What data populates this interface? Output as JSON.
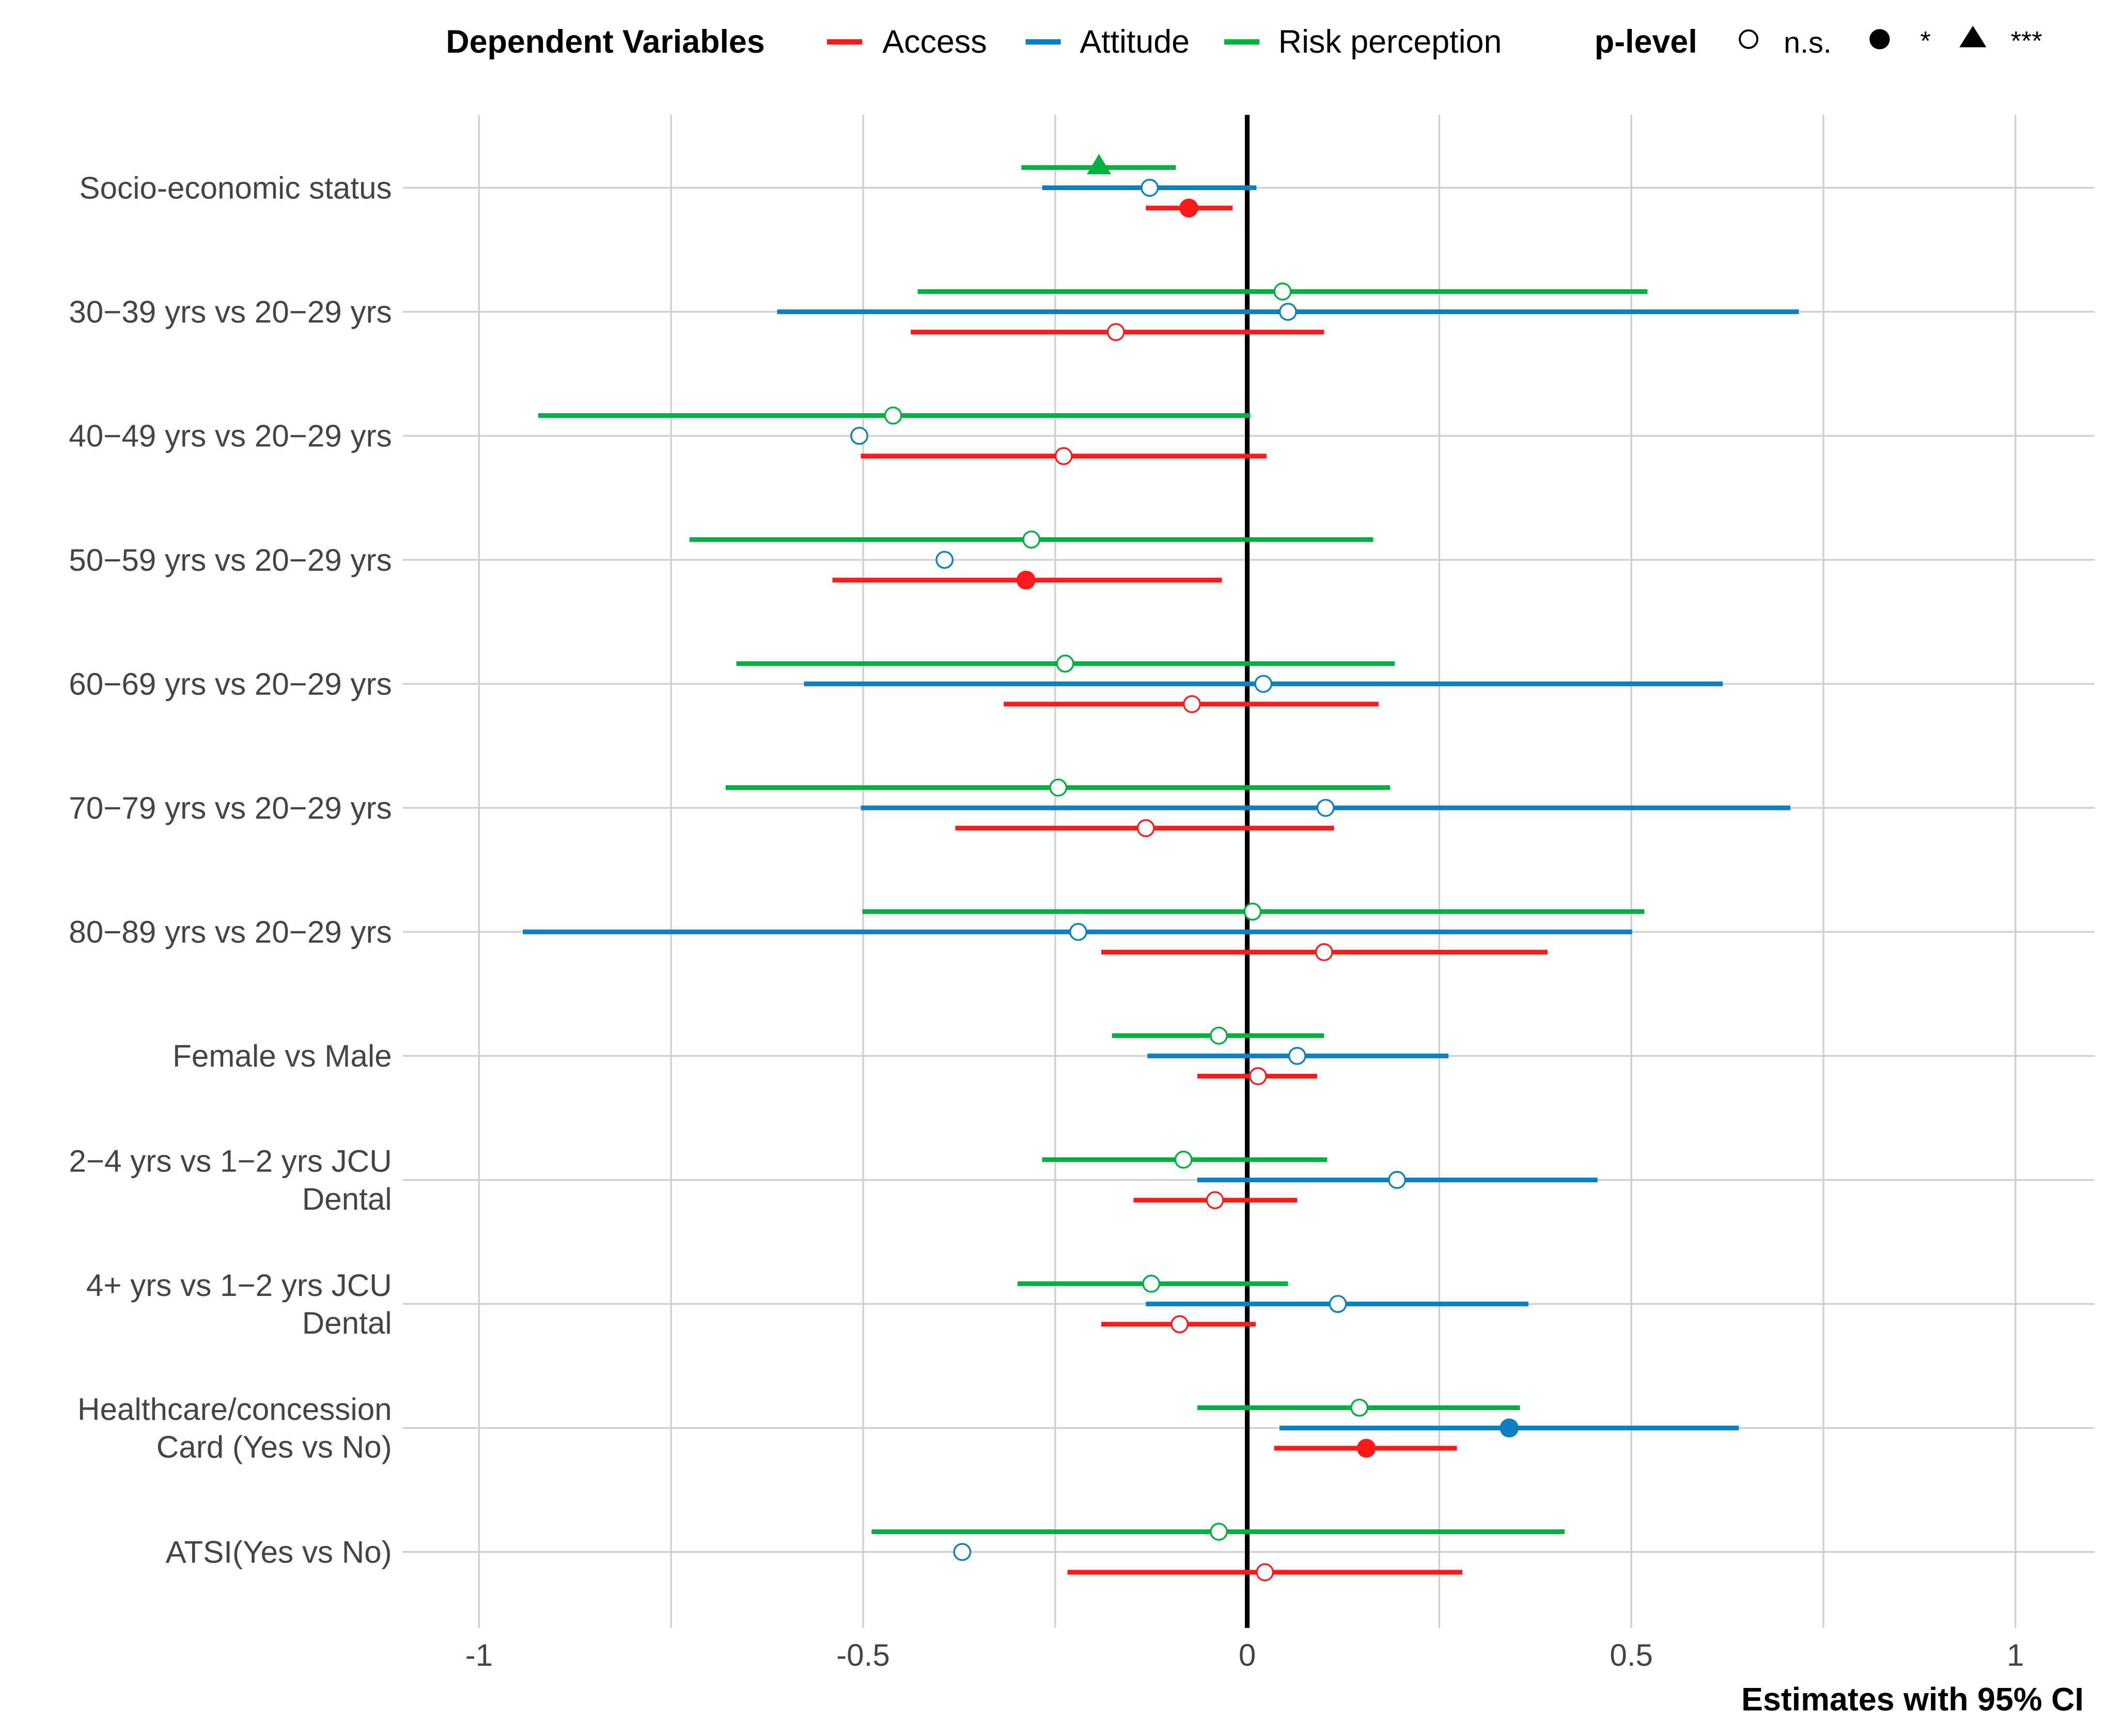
{
  "chart_data": {
    "type": "forest",
    "xlabel": "Estimates with 95% CI",
    "xlim": [
      -1.12,
      1.1
    ],
    "xticks": [
      -1,
      -0.5,
      0,
      0.5,
      1
    ],
    "xtick_labels": [
      "-1",
      "-0.5",
      "0",
      "0.5",
      "1"
    ],
    "grid": true,
    "legend_placement": "top",
    "legend": {
      "title": "Dependent Variables",
      "series": [
        "Access",
        "Attitude",
        "Risk perception"
      ],
      "p_title": "p-level",
      "p_levels": [
        "n.s.",
        "*",
        "***"
      ]
    },
    "colors": {
      "Access": "#ff1a1a",
      "Attitude": "#0a7fc1",
      "Risk perception": "#00b140"
    },
    "categories": [
      [
        "Socio-economic status"
      ],
      [
        "30−39 yrs vs 20−29 yrs"
      ],
      [
        "40−49 yrs vs 20−29 yrs"
      ],
      [
        "50−59 yrs vs 20−29 yrs"
      ],
      [
        "60−69 yrs vs 20−29 yrs"
      ],
      [
        "70−79 yrs vs 20−29 yrs"
      ],
      [
        "80−89 yrs vs 20−29 yrs"
      ],
      [
        "Female vs Male"
      ],
      [
        "2−4 yrs vs 1−2 yrs JCU",
        "Dental"
      ],
      [
        "4+ yrs vs 1−2 yrs JCU",
        "Dental"
      ],
      [
        "Healthcare/concession",
        "Card (Yes vs No)"
      ],
      [
        "ATSI(Yes vs No)"
      ]
    ],
    "series": [
      {
        "name": "Risk perception",
        "estimates": [
          -0.193,
          0.046,
          -0.461,
          -0.281,
          -0.237,
          -0.246,
          0.007,
          -0.037,
          -0.083,
          -0.125,
          0.146,
          -0.037
        ],
        "lower": [
          -0.294,
          -0.429,
          -0.923,
          -0.726,
          -0.665,
          -0.679,
          -0.501,
          -0.176,
          -0.267,
          -0.299,
          -0.065,
          -0.489
        ],
        "upper": [
          -0.093,
          0.521,
          0.004,
          0.164,
          0.192,
          0.186,
          0.517,
          0.1,
          0.104,
          0.053,
          0.355,
          0.413
        ],
        "p_level": [
          "***",
          "n.s.",
          "n.s.",
          "n.s.",
          "n.s.",
          "n.s.",
          "n.s.",
          "n.s.",
          "n.s.",
          "n.s.",
          "n.s.",
          "n.s."
        ]
      },
      {
        "name": "Attitude",
        "estimates": [
          -0.127,
          0.053,
          -0.505,
          -0.394,
          0.021,
          0.102,
          -0.22,
          0.065,
          0.195,
          0.118,
          0.341,
          -0.371
        ],
        "lower": [
          -0.267,
          -0.612,
          null,
          null,
          -0.577,
          -0.503,
          -0.943,
          -0.13,
          -0.065,
          -0.132,
          0.042,
          null
        ],
        "upper": [
          0.012,
          0.718,
          null,
          null,
          0.619,
          0.707,
          0.501,
          0.262,
          0.456,
          0.366,
          0.64,
          null
        ],
        "p_level": [
          "n.s.",
          "n.s.",
          "n.s.",
          "n.s.",
          "n.s.",
          "n.s.",
          "n.s.",
          "n.s.",
          "n.s.",
          "n.s.",
          "*",
          "n.s."
        ]
      },
      {
        "name": "Access",
        "estimates": [
          -0.076,
          -0.171,
          -0.239,
          -0.288,
          -0.072,
          -0.132,
          0.1,
          0.014,
          -0.042,
          -0.088,
          0.155,
          0.023
        ],
        "lower": [
          -0.132,
          -0.438,
          -0.503,
          -0.54,
          -0.317,
          -0.38,
          -0.19,
          -0.065,
          -0.148,
          -0.19,
          0.035,
          -0.234
        ],
        "upper": [
          -0.019,
          0.1,
          0.025,
          -0.033,
          0.171,
          0.113,
          0.391,
          0.091,
          0.065,
          0.011,
          0.273,
          0.28
        ],
        "p_level": [
          "*",
          "n.s.",
          "n.s.",
          "*",
          "n.s.",
          "n.s.",
          "n.s.",
          "n.s.",
          "n.s.",
          "n.s.",
          "*",
          "n.s."
        ]
      }
    ]
  }
}
